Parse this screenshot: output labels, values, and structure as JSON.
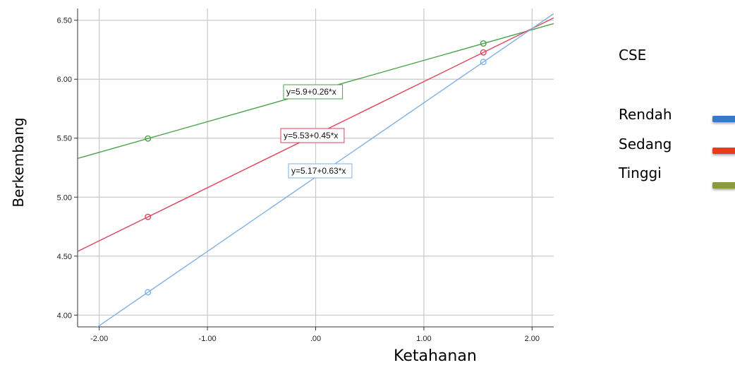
{
  "chart_data": {
    "type": "line",
    "xlabel": "Ketahanan",
    "ylabel": "Berkembang",
    "xlim": [
      -2.2,
      2.2
    ],
    "ylim": [
      3.9,
      6.6
    ],
    "x_ticks": [
      -2.0,
      -1.0,
      0.0,
      1.0,
      2.0
    ],
    "x_tick_labels": [
      "-2.00",
      "-1.00",
      ".00",
      "1.00",
      "2.00"
    ],
    "y_ticks": [
      4.0,
      4.5,
      5.0,
      5.5,
      6.0,
      6.5
    ],
    "y_tick_labels": [
      "4.00",
      "4.50",
      "5.00",
      "5.50",
      "6.00",
      "6.50"
    ],
    "grid": true,
    "legend_title": "CSE",
    "legend": [
      {
        "label": "Rendah",
        "color": "#3a78c8"
      },
      {
        "label": "Sedang",
        "color": "#ee3a1c"
      },
      {
        "label": "Tinggi",
        "color": "#8a9a3c"
      }
    ],
    "series": [
      {
        "intercept": 5.9,
        "slope": 0.26,
        "equation": "y=5.9+0.26*x",
        "color": "#4aa24a",
        "points": [
          [
            -1.55,
            5.497
          ],
          [
            1.55,
            6.303
          ]
        ]
      },
      {
        "intercept": 5.53,
        "slope": 0.45,
        "equation": "y=5.53+0.45*x",
        "color": "#e0425a",
        "points": [
          [
            -1.55,
            4.8325
          ],
          [
            1.55,
            6.2275
          ]
        ]
      },
      {
        "intercept": 5.17,
        "slope": 0.63,
        "equation": "y=5.17+0.63*x",
        "color": "#7fb0e6",
        "points": [
          [
            -1.55,
            4.1935
          ],
          [
            1.55,
            6.1465
          ]
        ]
      }
    ]
  }
}
